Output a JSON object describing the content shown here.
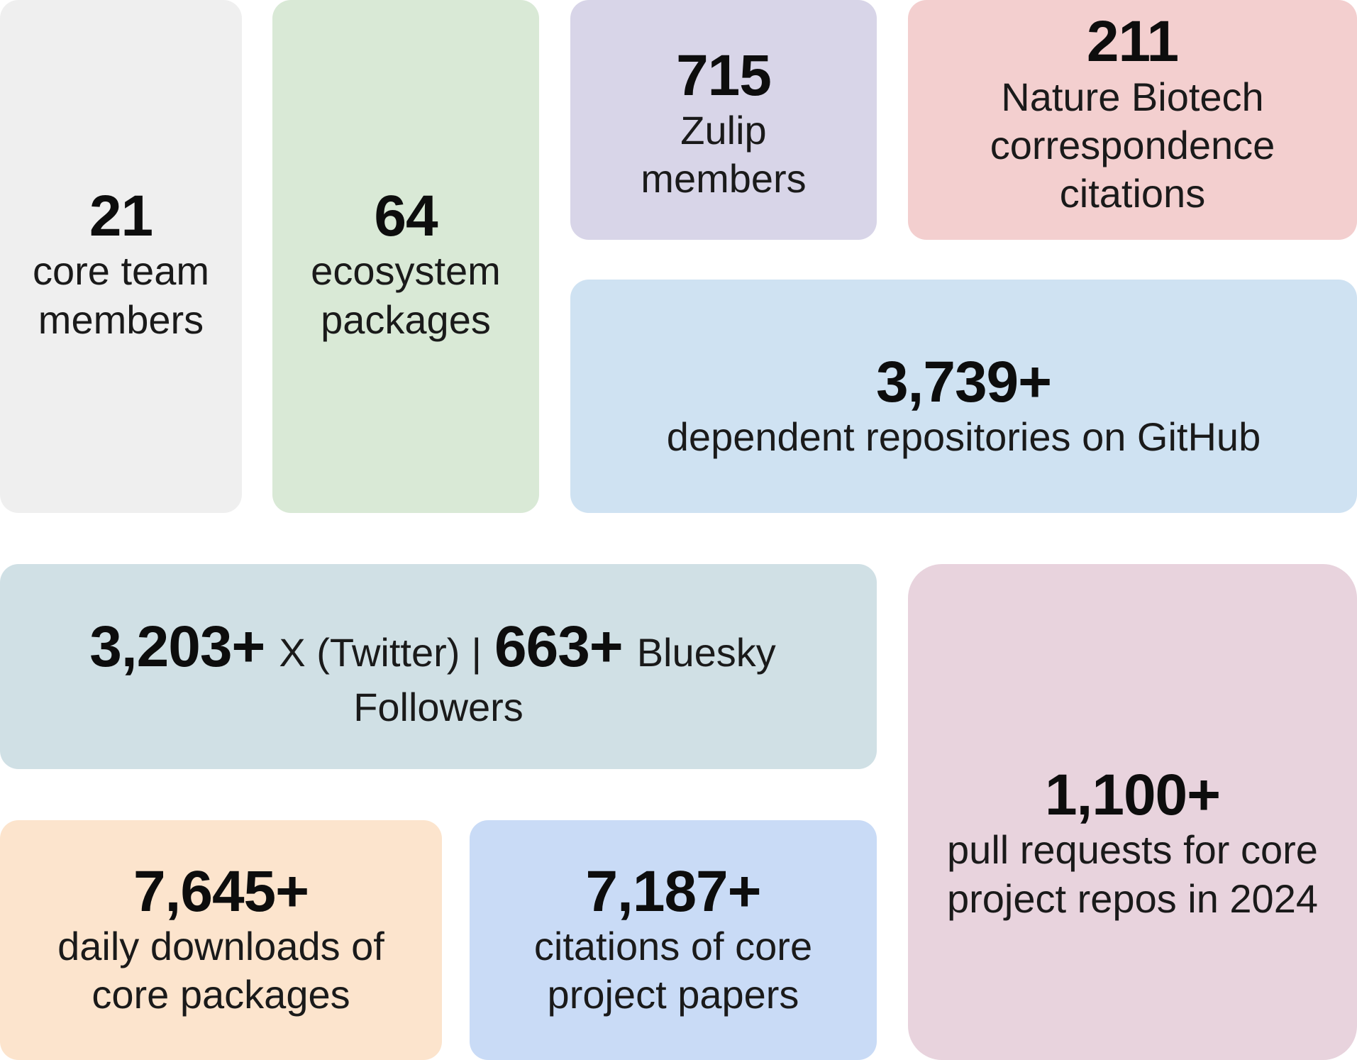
{
  "tiles": {
    "core_team": {
      "value": "21",
      "label": "core team\nmembers",
      "color": "#efefef"
    },
    "ecosystem": {
      "value": "64",
      "label": "ecosystem\npackages",
      "color": "#d9e9d6"
    },
    "zulip": {
      "value": "715",
      "label": "Zulip\nmembers",
      "color": "#d8d5e8"
    },
    "nature": {
      "value": "211",
      "label": "Nature Biotech\ncorrespondence\ncitations",
      "color": "#f3cfcf"
    },
    "github": {
      "value": "3,739+",
      "label": "dependent repositories on GitHub",
      "color": "#cfe2f2"
    },
    "social": {
      "x_value": "3,203+",
      "x_label": "X (Twitter)",
      "separator": "|",
      "bluesky_value": "663+",
      "bluesky_label": "Bluesky",
      "sub_label": "Followers",
      "color": "#d0e0e5"
    },
    "pull_requests": {
      "value": "1,100+",
      "label": "pull requests for core\nproject repos in 2024",
      "color": "#e8d3dd"
    },
    "downloads": {
      "value": "7,645+",
      "label": "daily downloads of\ncore packages",
      "color": "#fce4cd"
    },
    "citations": {
      "value": "7,187+",
      "label": "citations of core\nproject papers",
      "color": "#c9dbf6"
    }
  }
}
